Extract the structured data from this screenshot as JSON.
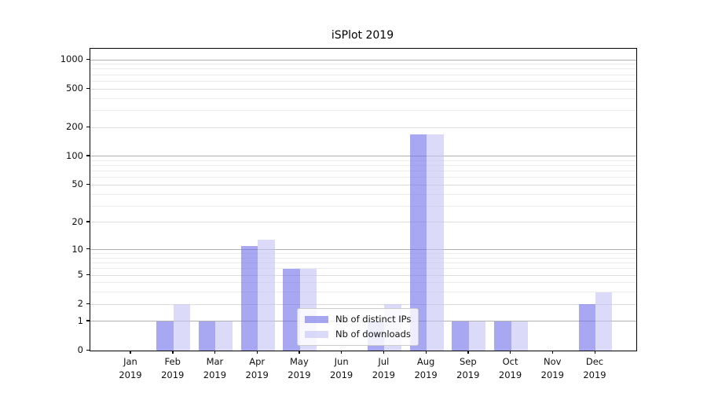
{
  "chart_data": {
    "type": "bar",
    "title": "iSPlot 2019",
    "categories": [
      "Jan",
      "Feb",
      "Mar",
      "Apr",
      "May",
      "Jun",
      "Jul",
      "Aug",
      "Sep",
      "Oct",
      "Nov",
      "Dec"
    ],
    "x_year": "2019",
    "series": [
      {
        "name": "Nb of distinct IPs",
        "color": "rgba(110,110,233,0.6)",
        "values": [
          0,
          1,
          1,
          11,
          6,
          0,
          1,
          170,
          1,
          1,
          0,
          2
        ]
      },
      {
        "name": "Nb of downloads",
        "color": "rgba(195,195,245,0.6)",
        "values": [
          0,
          2,
          1,
          13,
          6,
          0,
          2,
          170,
          1,
          1,
          0,
          3
        ]
      }
    ],
    "yscale": "log10(1+v)",
    "ylim": [
      0,
      1300
    ],
    "y_ticks": [
      0,
      1,
      2,
      5,
      10,
      20,
      50,
      100,
      200,
      500,
      1000
    ],
    "gridlines": {
      "major": [
        1,
        10,
        100,
        1000
      ],
      "mid": [
        2,
        5,
        20,
        50,
        200,
        500
      ],
      "minor": [
        3,
        4,
        6,
        7,
        8,
        9,
        30,
        40,
        60,
        70,
        80,
        90,
        300,
        400,
        600,
        700,
        800,
        900
      ]
    },
    "legend_position": "lower center",
    "grid": true
  },
  "colors": {
    "major_grid": "#b0b0b0",
    "mid_grid": "#dcdcdc",
    "minor_grid": "#ececec",
    "axis": "#000000",
    "text": "#111111",
    "legend_border": "#cccccc",
    "legend_bg": "rgba(255,255,255,0.8)"
  }
}
